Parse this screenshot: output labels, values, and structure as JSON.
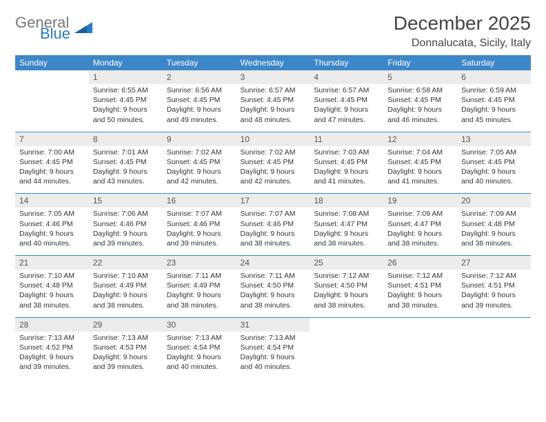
{
  "brand": {
    "word1": "General",
    "word2": "Blue"
  },
  "title": "December 2025",
  "location": "Donnalucata, Sicily, Italy",
  "calendar": {
    "header_bg": "#3d87c9",
    "header_fg": "#ffffff",
    "daynum_bg": "#ececec",
    "rule_color": "#3d87c9",
    "day_headers": [
      "Sunday",
      "Monday",
      "Tuesday",
      "Wednesday",
      "Thursday",
      "Friday",
      "Saturday"
    ],
    "weeks": [
      {
        "nums": [
          "",
          "1",
          "2",
          "3",
          "4",
          "5",
          "6"
        ],
        "cells": [
          null,
          {
            "sunrise": "6:55 AM",
            "sunset": "4:45 PM",
            "daylight": "9 hours and 50 minutes."
          },
          {
            "sunrise": "6:56 AM",
            "sunset": "4:45 PM",
            "daylight": "9 hours and 49 minutes."
          },
          {
            "sunrise": "6:57 AM",
            "sunset": "4:45 PM",
            "daylight": "9 hours and 48 minutes."
          },
          {
            "sunrise": "6:57 AM",
            "sunset": "4:45 PM",
            "daylight": "9 hours and 47 minutes."
          },
          {
            "sunrise": "6:58 AM",
            "sunset": "4:45 PM",
            "daylight": "9 hours and 46 minutes."
          },
          {
            "sunrise": "6:59 AM",
            "sunset": "4:45 PM",
            "daylight": "9 hours and 45 minutes."
          }
        ]
      },
      {
        "nums": [
          "7",
          "8",
          "9",
          "10",
          "11",
          "12",
          "13"
        ],
        "cells": [
          {
            "sunrise": "7:00 AM",
            "sunset": "4:45 PM",
            "daylight": "9 hours and 44 minutes."
          },
          {
            "sunrise": "7:01 AM",
            "sunset": "4:45 PM",
            "daylight": "9 hours and 43 minutes."
          },
          {
            "sunrise": "7:02 AM",
            "sunset": "4:45 PM",
            "daylight": "9 hours and 42 minutes."
          },
          {
            "sunrise": "7:02 AM",
            "sunset": "4:45 PM",
            "daylight": "9 hours and 42 minutes."
          },
          {
            "sunrise": "7:03 AM",
            "sunset": "4:45 PM",
            "daylight": "9 hours and 41 minutes."
          },
          {
            "sunrise": "7:04 AM",
            "sunset": "4:45 PM",
            "daylight": "9 hours and 41 minutes."
          },
          {
            "sunrise": "7:05 AM",
            "sunset": "4:45 PM",
            "daylight": "9 hours and 40 minutes."
          }
        ]
      },
      {
        "nums": [
          "14",
          "15",
          "16",
          "17",
          "18",
          "19",
          "20"
        ],
        "cells": [
          {
            "sunrise": "7:05 AM",
            "sunset": "4:46 PM",
            "daylight": "9 hours and 40 minutes."
          },
          {
            "sunrise": "7:06 AM",
            "sunset": "4:46 PM",
            "daylight": "9 hours and 39 minutes."
          },
          {
            "sunrise": "7:07 AM",
            "sunset": "4:46 PM",
            "daylight": "9 hours and 39 minutes."
          },
          {
            "sunrise": "7:07 AM",
            "sunset": "4:46 PM",
            "daylight": "9 hours and 38 minutes."
          },
          {
            "sunrise": "7:08 AM",
            "sunset": "4:47 PM",
            "daylight": "9 hours and 38 minutes."
          },
          {
            "sunrise": "7:09 AM",
            "sunset": "4:47 PM",
            "daylight": "9 hours and 38 minutes."
          },
          {
            "sunrise": "7:09 AM",
            "sunset": "4:48 PM",
            "daylight": "9 hours and 38 minutes."
          }
        ]
      },
      {
        "nums": [
          "21",
          "22",
          "23",
          "24",
          "25",
          "26",
          "27"
        ],
        "cells": [
          {
            "sunrise": "7:10 AM",
            "sunset": "4:48 PM",
            "daylight": "9 hours and 38 minutes."
          },
          {
            "sunrise": "7:10 AM",
            "sunset": "4:49 PM",
            "daylight": "9 hours and 38 minutes."
          },
          {
            "sunrise": "7:11 AM",
            "sunset": "4:49 PM",
            "daylight": "9 hours and 38 minutes."
          },
          {
            "sunrise": "7:11 AM",
            "sunset": "4:50 PM",
            "daylight": "9 hours and 38 minutes."
          },
          {
            "sunrise": "7:12 AM",
            "sunset": "4:50 PM",
            "daylight": "9 hours and 38 minutes."
          },
          {
            "sunrise": "7:12 AM",
            "sunset": "4:51 PM",
            "daylight": "9 hours and 38 minutes."
          },
          {
            "sunrise": "7:12 AM",
            "sunset": "4:51 PM",
            "daylight": "9 hours and 39 minutes."
          }
        ]
      },
      {
        "nums": [
          "28",
          "29",
          "30",
          "31",
          "",
          "",
          ""
        ],
        "cells": [
          {
            "sunrise": "7:13 AM",
            "sunset": "4:52 PM",
            "daylight": "9 hours and 39 minutes."
          },
          {
            "sunrise": "7:13 AM",
            "sunset": "4:53 PM",
            "daylight": "9 hours and 39 minutes."
          },
          {
            "sunrise": "7:13 AM",
            "sunset": "4:54 PM",
            "daylight": "9 hours and 40 minutes."
          },
          {
            "sunrise": "7:13 AM",
            "sunset": "4:54 PM",
            "daylight": "9 hours and 40 minutes."
          },
          null,
          null,
          null
        ]
      }
    ],
    "labels": {
      "sunrise": "Sunrise:",
      "sunset": "Sunset:",
      "daylight": "Daylight:"
    }
  }
}
